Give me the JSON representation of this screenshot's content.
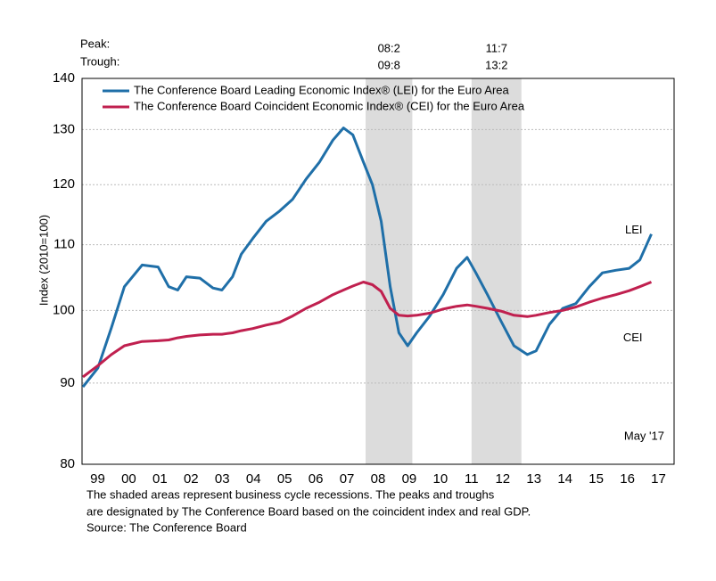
{
  "chart_data": {
    "type": "line",
    "y_label": "Index (2010=100)",
    "peak_label": "Peak:",
    "trough_label": "Trough:",
    "recessions": [
      {
        "peak": "08:2",
        "trough": "09:8",
        "start": 2008.1,
        "end": 2009.6
      },
      {
        "peak": "11:7",
        "trough": "13:2",
        "start": 2011.5,
        "end": 2013.1
      }
    ],
    "x": [
      1999.03,
      1999.51,
      1999.94,
      2000.36,
      2000.93,
      2001.44,
      2001.78,
      2002.07,
      2002.35,
      2002.78,
      2003.2,
      2003.49,
      2003.83,
      2004.11,
      2004.48,
      2004.91,
      2005.34,
      2005.76,
      2006.19,
      2006.62,
      2007.05,
      2007.39,
      2007.69,
      2008.03,
      2008.32,
      2008.6,
      2008.89,
      2009.17,
      2009.45,
      2009.74,
      2010.16,
      2010.59,
      2011.02,
      2011.36,
      2011.64,
      2012.01,
      2012.44,
      2012.86,
      2013.29,
      2013.57,
      2014.0,
      2014.43,
      2014.85,
      2015.28,
      2015.7,
      2016.13,
      2016.56,
      2016.9,
      2017.27
    ],
    "series": [
      {
        "name": "The Conference Board Leading Economic Index® (LEI) for the Euro Area",
        "color": "#1f6fa8",
        "label": "LEI",
        "values": [
          89.5,
          92,
          97.5,
          103.5,
          106.8,
          106.5,
          103.5,
          103,
          105,
          104.8,
          103.3,
          103,
          105,
          108.5,
          111,
          113.8,
          115.5,
          117.5,
          121,
          124,
          128,
          130.3,
          129,
          124,
          120,
          113.8,
          103.5,
          96.8,
          95,
          96.8,
          99.2,
          102.3,
          106.3,
          108,
          105.6,
          102.3,
          98.5,
          95,
          93.8,
          94.3,
          98,
          100.3,
          101,
          103.5,
          105.6,
          106,
          106.3,
          107.6,
          111.7
        ]
      },
      {
        "name": "The Conference Board Coincident Economic Index® (CEI) for the Euro Area",
        "color": "#c0204f",
        "label": "CEI",
        "values": [
          90.8,
          92.3,
          93.8,
          95,
          95.6,
          95.7,
          95.8,
          96.1,
          96.3,
          96.5,
          96.6,
          96.6,
          96.8,
          97.1,
          97.4,
          97.9,
          98.3,
          99.2,
          100.3,
          101.2,
          102.3,
          103,
          103.6,
          104.2,
          103.8,
          102.8,
          100.3,
          99.3,
          99.2,
          99.3,
          99.6,
          100.2,
          100.6,
          100.8,
          100.6,
          100.3,
          99.9,
          99.3,
          99.1,
          99.3,
          99.7,
          100,
          100.5,
          101.2,
          101.8,
          102.3,
          102.9,
          103.5,
          104.2
        ]
      }
    ],
    "xlim": [
      1999,
      2018
    ],
    "xticks": [
      {
        "value": 1999.5,
        "label": "99"
      },
      {
        "value": 2000.5,
        "label": "00"
      },
      {
        "value": 2001.5,
        "label": "01"
      },
      {
        "value": 2002.5,
        "label": "02"
      },
      {
        "value": 2003.5,
        "label": "03"
      },
      {
        "value": 2004.5,
        "label": "04"
      },
      {
        "value": 2005.5,
        "label": "05"
      },
      {
        "value": 2006.5,
        "label": "06"
      },
      {
        "value": 2007.5,
        "label": "07"
      },
      {
        "value": 2008.5,
        "label": "08"
      },
      {
        "value": 2009.5,
        "label": "09"
      },
      {
        "value": 2010.5,
        "label": "10"
      },
      {
        "value": 2011.5,
        "label": "11"
      },
      {
        "value": 2012.5,
        "label": "12"
      },
      {
        "value": 2013.5,
        "label": "13"
      },
      {
        "value": 2014.5,
        "label": "14"
      },
      {
        "value": 2015.5,
        "label": "15"
      },
      {
        "value": 2016.5,
        "label": "16"
      },
      {
        "value": 2017.5,
        "label": "17"
      }
    ],
    "ylim": [
      80,
      140
    ],
    "yticks": [
      80,
      90,
      100,
      110,
      120,
      130,
      140
    ],
    "log_y": true,
    "grid": true,
    "date_note": "May '17",
    "footnote": [
      "The shaded areas represent business cycle recessions. The peaks and troughs",
      "are designated by The Conference Board based on the coincident index and real GDP.",
      "Source: The Conference Board"
    ]
  }
}
